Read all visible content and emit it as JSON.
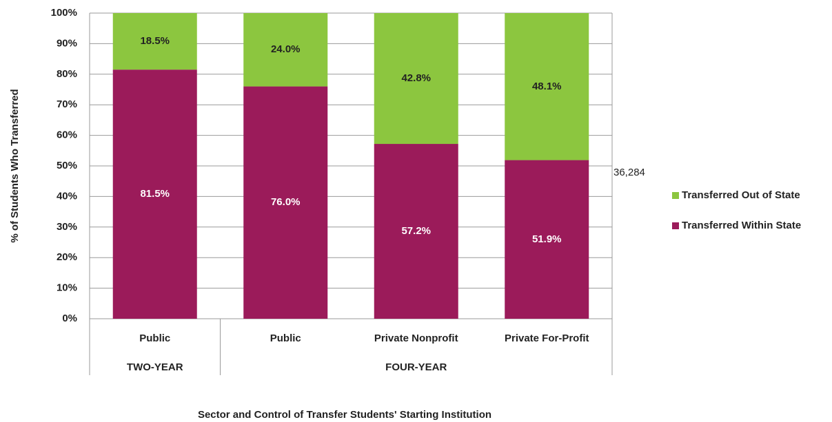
{
  "chart_data": {
    "type": "stacked_bar",
    "xlabel": "Sector and Control of Transfer Students' Starting Institution",
    "ylabel": "% of Students Who Transferred",
    "categories": [
      "Public",
      "Public",
      "Private Nonprofit",
      "Private For-Profit"
    ],
    "category_groups": [
      "TWO-YEAR",
      "FOUR-YEAR",
      "FOUR-YEAR",
      "FOUR-YEAR"
    ],
    "series": [
      {
        "name": "Transferred Within State",
        "color": "#9b1b5a",
        "values": [
          81.5,
          76.0,
          57.2,
          51.9
        ],
        "value_labels": [
          "81.5%",
          "76.0%",
          "57.2%",
          "51.9%"
        ]
      },
      {
        "name": "Transferred Out of State",
        "color": "#8cc63f",
        "values": [
          18.5,
          24.0,
          42.8,
          48.1
        ],
        "value_labels": [
          "18.5%",
          "24.0%",
          "42.8%",
          "48.1%"
        ]
      }
    ],
    "annotation": "36,284",
    "ylim": [
      0,
      100
    ],
    "yticks": [
      {
        "value": 0,
        "label": "0%"
      },
      {
        "value": 10,
        "label": "10%"
      },
      {
        "value": 20,
        "label": "20%"
      },
      {
        "value": 30,
        "label": "30%"
      },
      {
        "value": 40,
        "label": "40%"
      },
      {
        "value": 50,
        "label": "50%"
      },
      {
        "value": 60,
        "label": "60%"
      },
      {
        "value": 70,
        "label": "70%"
      },
      {
        "value": 80,
        "label": "80%"
      },
      {
        "value": 90,
        "label": "90%"
      },
      {
        "value": 100,
        "label": "100%"
      }
    ],
    "grid": true,
    "legend": "right"
  }
}
